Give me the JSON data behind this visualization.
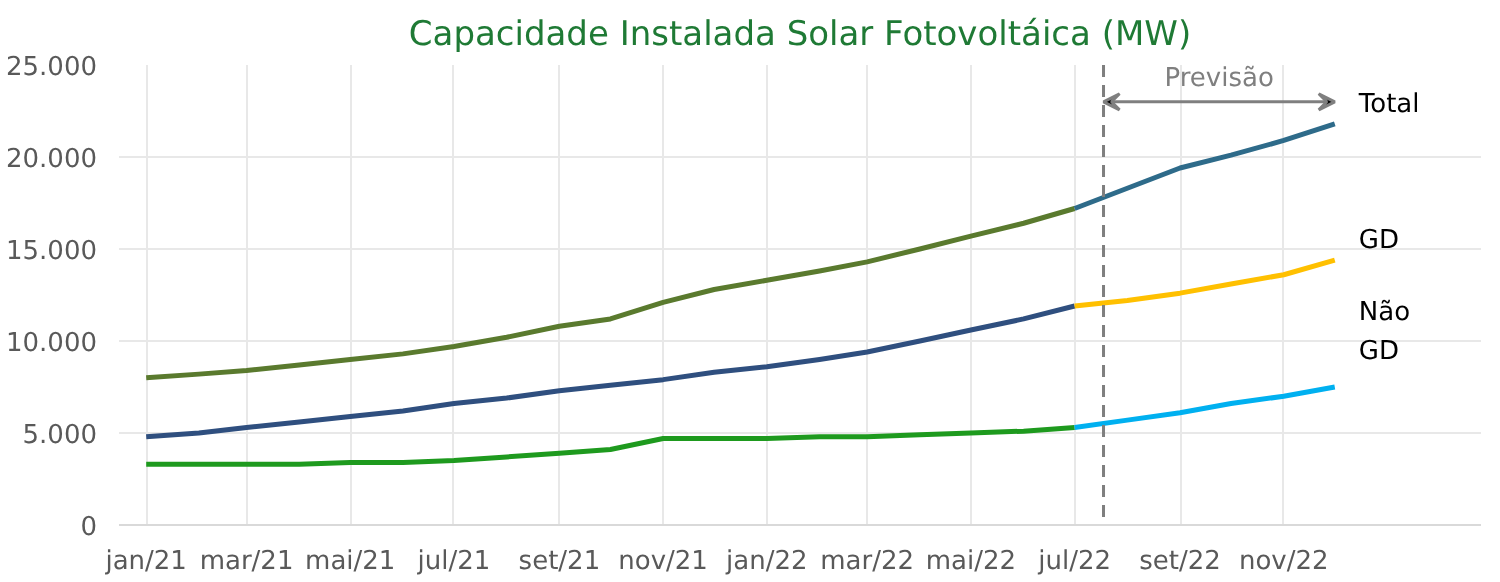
{
  "chart_data": {
    "type": "line",
    "title": "Capacidade Instalada Solar Fotovoltáica (MW)",
    "x": [
      "2021-01",
      "2021-02",
      "2021-03",
      "2021-04",
      "2021-05",
      "2021-06",
      "2021-07",
      "2021-08",
      "2021-09",
      "2021-10",
      "2021-11",
      "2021-12",
      "2022-01",
      "2022-02",
      "2022-03",
      "2022-04",
      "2022-05",
      "2022-06",
      "2022-07",
      "2022-08",
      "2022-09",
      "2022-10",
      "2022-11",
      "2022-12"
    ],
    "xlim": [
      "2020-12-16",
      "2023-02-25"
    ],
    "xticks": [
      {
        "value": "2021-01",
        "label": "jan/21"
      },
      {
        "value": "2021-03",
        "label": "mar/21"
      },
      {
        "value": "2021-05",
        "label": "mai/21"
      },
      {
        "value": "2021-07",
        "label": "jul/21"
      },
      {
        "value": "2021-09",
        "label": "set/21"
      },
      {
        "value": "2021-11",
        "label": "nov/21"
      },
      {
        "value": "2022-01",
        "label": "jan/22"
      },
      {
        "value": "2022-03",
        "label": "mar/22"
      },
      {
        "value": "2022-05",
        "label": "mai/22"
      },
      {
        "value": "2022-07",
        "label": "jul/22"
      },
      {
        "value": "2022-09",
        "label": "set/22"
      },
      {
        "value": "2022-11",
        "label": "nov/22"
      }
    ],
    "ylim": [
      0,
      25000
    ],
    "yticks": [
      0,
      {
        "value": 5000,
        "label": "5.000"
      },
      {
        "value": 10000,
        "label": "10.000"
      },
      {
        "value": 15000,
        "label": "15.000"
      },
      {
        "value": 20000,
        "label": "20.000"
      },
      {
        "value": 25000,
        "label": "25.000"
      }
    ],
    "series": [
      {
        "color": "#5a7a2e",
        "values": [
          8000,
          8200,
          8400,
          8700,
          9000,
          9300,
          9700,
          10200,
          10800,
          11200,
          12100,
          12800,
          13300,
          13800,
          14300,
          15000,
          15700,
          16400,
          17200,
          null,
          null,
          null,
          null,
          null
        ]
      },
      {
        "name": "Total",
        "color": "#2e6b8a",
        "values": [
          null,
          null,
          null,
          null,
          null,
          null,
          null,
          null,
          null,
          null,
          null,
          null,
          null,
          null,
          null,
          null,
          null,
          null,
          17200,
          18300,
          19400,
          20100,
          20900,
          21800
        ]
      },
      {
        "color": "#2f4f7f",
        "values": [
          4800,
          5000,
          5300,
          5600,
          5900,
          6200,
          6600,
          6900,
          7300,
          7600,
          7900,
          8300,
          8600,
          9000,
          9400,
          10000,
          10600,
          11200,
          11900,
          null,
          null,
          null,
          null,
          null
        ]
      },
      {
        "name": "GD",
        "color": "#ffc000",
        "values": [
          null,
          null,
          null,
          null,
          null,
          null,
          null,
          null,
          null,
          null,
          null,
          null,
          null,
          null,
          null,
          null,
          null,
          null,
          11900,
          12200,
          12600,
          13100,
          13600,
          14400
        ]
      },
      {
        "color": "#1e9a1e",
        "values": [
          3300,
          3300,
          3300,
          3300,
          3400,
          3400,
          3500,
          3700,
          3900,
          4100,
          4700,
          4700,
          4700,
          4800,
          4800,
          4900,
          5000,
          5100,
          5300,
          null,
          null,
          null,
          null,
          null
        ]
      },
      {
        "name": "Não GD",
        "color": "#00b0f0",
        "values": [
          null,
          null,
          null,
          null,
          null,
          null,
          null,
          null,
          null,
          null,
          null,
          null,
          null,
          null,
          null,
          null,
          null,
          null,
          5300,
          5700,
          6100,
          6600,
          7000,
          7500
        ]
      }
    ],
    "ref_lines": [
      {
        "axis": "x",
        "value": "2022-07-18",
        "color": "#7f7f7f",
        "line_style": "dashed"
      }
    ],
    "annotations": [
      "Previsão"
    ],
    "grid": true,
    "marker": "none",
    "line_style": "solid"
  }
}
